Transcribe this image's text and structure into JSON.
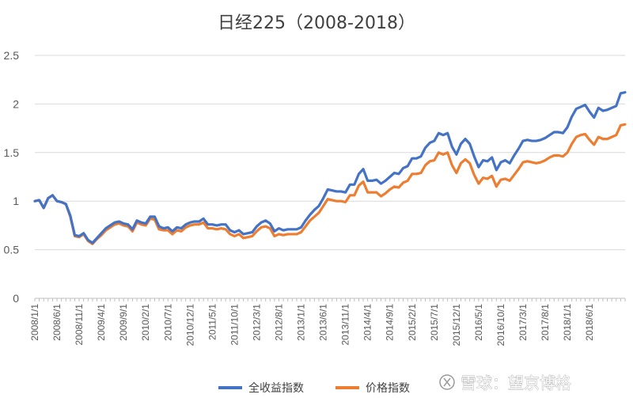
{
  "chart_data": {
    "type": "line",
    "title": "日经225（2008-2018）",
    "xlabel": "",
    "ylabel": "",
    "ylim": [
      0,
      2.5
    ],
    "yticks": [
      "0",
      "0.5",
      "1",
      "1.5",
      "2",
      "2.5"
    ],
    "xticks": [
      "2008/1/1",
      "2008/6/1",
      "2008/11/1",
      "2009/4/1",
      "2009/9/1",
      "2010/2/1",
      "2010/7/1",
      "2010/12/1",
      "2011/5/1",
      "2011/10/1",
      "2012/3/1",
      "2012/8/1",
      "2013/1/1",
      "2013/6/1",
      "2013/11/1",
      "2014/4/1",
      "2014/9/1",
      "2015/2/1",
      "2015/7/1",
      "2015/12/1",
      "2016/5/1",
      "2016/10/1",
      "2017/3/1",
      "2017/8/1",
      "2018/1/1",
      "2018/6/1"
    ],
    "grid": true,
    "legend_position": "bottom",
    "series": [
      {
        "name": "全收益指数",
        "color": "#4472C4",
        "values": [
          1.0,
          1.01,
          0.93,
          1.03,
          1.06,
          1.0,
          0.99,
          0.97,
          0.85,
          0.65,
          0.64,
          0.67,
          0.6,
          0.57,
          0.62,
          0.67,
          0.72,
          0.75,
          0.78,
          0.79,
          0.77,
          0.76,
          0.71,
          0.8,
          0.78,
          0.77,
          0.84,
          0.84,
          0.74,
          0.72,
          0.73,
          0.69,
          0.73,
          0.72,
          0.76,
          0.78,
          0.79,
          0.79,
          0.82,
          0.76,
          0.76,
          0.75,
          0.76,
          0.76,
          0.7,
          0.68,
          0.7,
          0.66,
          0.67,
          0.68,
          0.74,
          0.78,
          0.8,
          0.77,
          0.69,
          0.72,
          0.7,
          0.71,
          0.71,
          0.71,
          0.73,
          0.8,
          0.86,
          0.91,
          0.95,
          1.03,
          1.12,
          1.11,
          1.1,
          1.1,
          1.09,
          1.17,
          1.17,
          1.28,
          1.33,
          1.21,
          1.21,
          1.22,
          1.18,
          1.21,
          1.25,
          1.29,
          1.28,
          1.34,
          1.36,
          1.44,
          1.44,
          1.46,
          1.55,
          1.6,
          1.62,
          1.7,
          1.68,
          1.7,
          1.56,
          1.48,
          1.59,
          1.64,
          1.59,
          1.46,
          1.35,
          1.42,
          1.41,
          1.45,
          1.32,
          1.4,
          1.42,
          1.39,
          1.47,
          1.54,
          1.62,
          1.63,
          1.62,
          1.62,
          1.63,
          1.65,
          1.68,
          1.71,
          1.71,
          1.7,
          1.76,
          1.87,
          1.95,
          1.97,
          1.99,
          1.92,
          1.86,
          1.96,
          1.93,
          1.94,
          1.96,
          1.98,
          2.11,
          2.12
        ]
      },
      {
        "name": "价格指数",
        "color": "#ED7D31",
        "values": [
          1.0,
          1.01,
          0.93,
          1.03,
          1.06,
          1.0,
          0.99,
          0.97,
          0.84,
          0.64,
          0.63,
          0.66,
          0.59,
          0.56,
          0.61,
          0.65,
          0.7,
          0.73,
          0.76,
          0.77,
          0.75,
          0.74,
          0.69,
          0.78,
          0.76,
          0.75,
          0.82,
          0.81,
          0.71,
          0.7,
          0.7,
          0.66,
          0.7,
          0.69,
          0.73,
          0.75,
          0.76,
          0.76,
          0.78,
          0.72,
          0.72,
          0.71,
          0.72,
          0.71,
          0.66,
          0.64,
          0.66,
          0.62,
          0.63,
          0.64,
          0.69,
          0.73,
          0.74,
          0.72,
          0.64,
          0.66,
          0.65,
          0.66,
          0.66,
          0.66,
          0.68,
          0.74,
          0.8,
          0.84,
          0.88,
          0.95,
          1.02,
          1.01,
          1.0,
          1.0,
          0.99,
          1.06,
          1.06,
          1.16,
          1.2,
          1.09,
          1.09,
          1.09,
          1.05,
          1.08,
          1.12,
          1.15,
          1.14,
          1.19,
          1.21,
          1.28,
          1.28,
          1.29,
          1.37,
          1.41,
          1.42,
          1.5,
          1.48,
          1.5,
          1.37,
          1.29,
          1.39,
          1.43,
          1.39,
          1.27,
          1.18,
          1.24,
          1.23,
          1.26,
          1.15,
          1.22,
          1.23,
          1.21,
          1.27,
          1.33,
          1.4,
          1.41,
          1.4,
          1.39,
          1.4,
          1.42,
          1.45,
          1.47,
          1.47,
          1.46,
          1.5,
          1.59,
          1.66,
          1.68,
          1.69,
          1.63,
          1.58,
          1.66,
          1.64,
          1.64,
          1.66,
          1.68,
          1.78,
          1.79
        ]
      }
    ]
  },
  "watermark": {
    "text": "雪球：望京博格",
    "icon": "xueqiu-logo-icon"
  }
}
